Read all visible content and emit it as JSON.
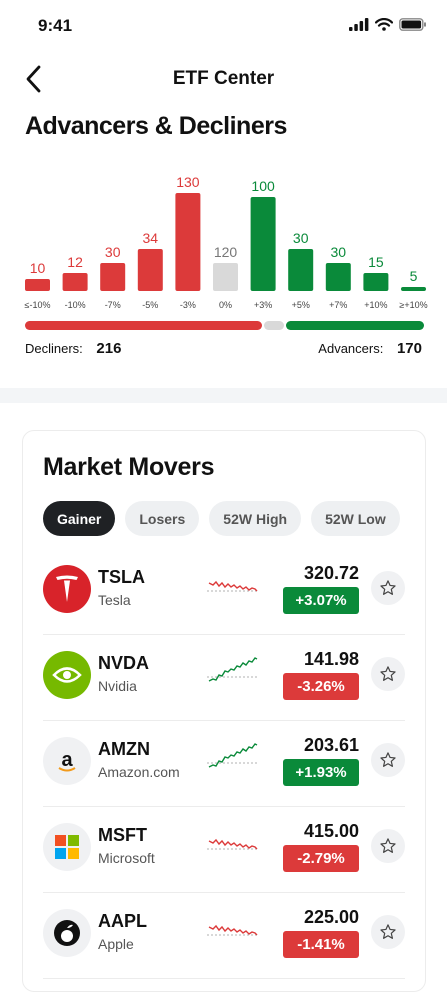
{
  "status": {
    "time": "9:41"
  },
  "nav": {
    "title": "ETF Center"
  },
  "section_title": "Advancers & Decliners",
  "colors": {
    "decline": "#dc3a3a",
    "advance": "#0a8a3a",
    "neutral": "#d9d9d9"
  },
  "distribution": {
    "type": "bar",
    "categories": [
      "≤-10%",
      "-10%",
      "-7%",
      "-5%",
      "-3%",
      "0%",
      "+3%",
      "+5%",
      "+7%",
      "+10%",
      "≥+10%"
    ],
    "values": [
      10,
      12,
      30,
      34,
      130,
      120,
      100,
      30,
      30,
      15,
      5
    ],
    "kinds": [
      "decline",
      "decline",
      "decline",
      "decline",
      "decline",
      "neutral",
      "advance",
      "advance",
      "advance",
      "advance",
      "advance"
    ],
    "heights": [
      12,
      18,
      28,
      42,
      98,
      28,
      94,
      42,
      28,
      18,
      4
    ]
  },
  "summary": {
    "decliners_label": "Decliners:",
    "decliners_value": "216",
    "advancers_label": "Advancers:",
    "advancers_value": "170"
  },
  "movers": {
    "title": "Market Movers",
    "tabs": [
      "Gainer",
      "Losers",
      "52W High",
      "52W Low"
    ],
    "active_tab": 0,
    "items": [
      {
        "ticker": "TSLA",
        "name": "Tesla",
        "price": "320.72",
        "change": "+3.07%",
        "dir": "up",
        "spark": "down",
        "logo": "tesla-logo-icon"
      },
      {
        "ticker": "NVDA",
        "name": "Nvidia",
        "price": "141.98",
        "change": "-3.26%",
        "dir": "down",
        "spark": "up",
        "logo": "nvidia-logo-icon"
      },
      {
        "ticker": "AMZN",
        "name": "Amazon.com",
        "price": "203.61",
        "change": "+1.93%",
        "dir": "up",
        "spark": "up",
        "logo": "amazon-logo-icon"
      },
      {
        "ticker": "MSFT",
        "name": "Microsoft",
        "price": "415.00",
        "change": "-2.79%",
        "dir": "down",
        "spark": "down",
        "logo": "microsoft-logo-icon"
      },
      {
        "ticker": "AAPL",
        "name": "Apple",
        "price": "225.00",
        "change": "-1.41%",
        "dir": "down",
        "spark": "down",
        "logo": "apple-logo-icon"
      }
    ]
  }
}
